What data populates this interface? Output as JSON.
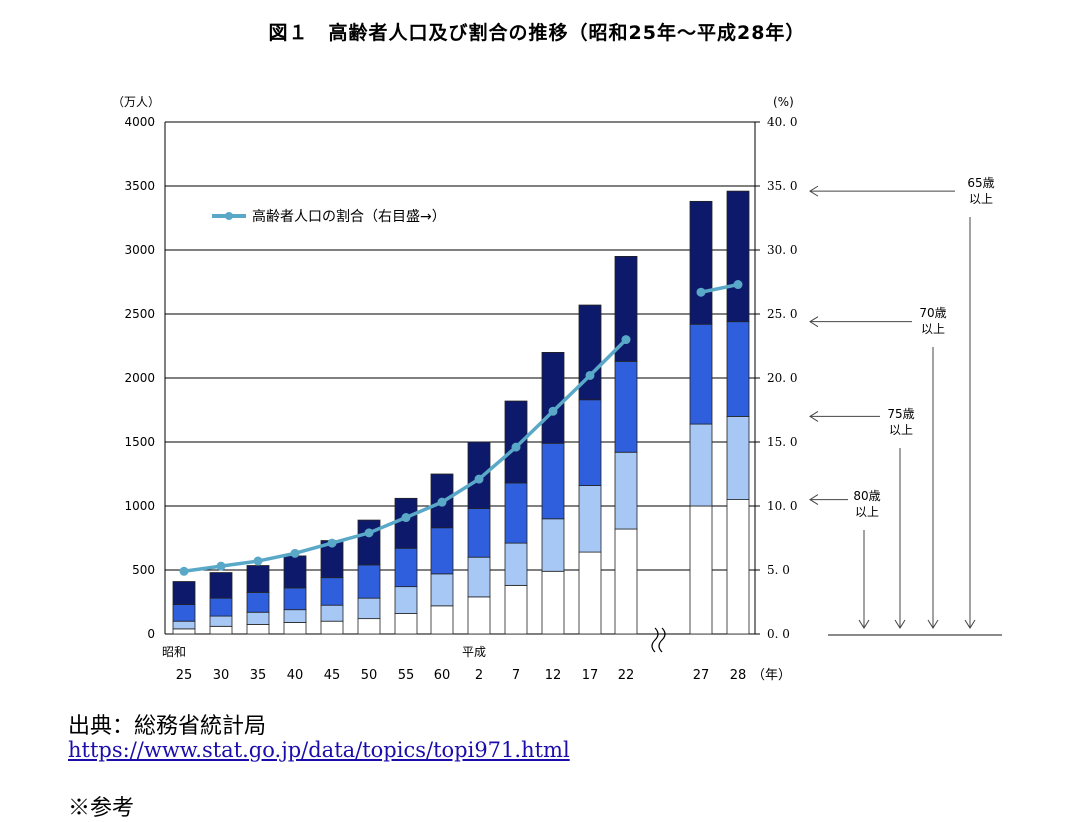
{
  "title": "図１　高齢者人口及び割合の推移（昭和25年～平成28年）",
  "colors": {
    "age65_69": "#0d1a6b",
    "age70_74": "#2f5fdc",
    "age75_79": "#a7c7f5",
    "age80plus": "#ffffff",
    "line": "#5aa8c8",
    "bar_stroke": "#222222",
    "arrow": "#444444"
  },
  "chart_data": {
    "type": "bar",
    "stacked": true,
    "y_unit_label": "（万人）",
    "y2_unit_label": "(%)",
    "ylim": [
      0,
      4000
    ],
    "y2lim": [
      0,
      40
    ],
    "y_ticks": [
      "4000",
      "3500",
      "3000",
      "2500",
      "2000",
      "1500",
      "1000",
      "500",
      "0"
    ],
    "y2_ticks": [
      "40. 0",
      "35. 0",
      "30. 0",
      "25. 0",
      "20. 0",
      "15. 0",
      "10. 0",
      "5. 0",
      "0. 0"
    ],
    "era_labels": [
      "昭和",
      "平成"
    ],
    "year_unit_label": "（年）",
    "categories": [
      "25",
      "30",
      "35",
      "40",
      "45",
      "50",
      "55",
      "60",
      "2",
      "7",
      "12",
      "17",
      "22",
      "27",
      "28"
    ],
    "grid": true,
    "axis_break_after": "22",
    "series": [
      {
        "key": "age80plus",
        "values": [
          40,
          60,
          75,
          90,
          100,
          120,
          160,
          220,
          290,
          380,
          490,
          640,
          820,
          1000,
          1050
        ]
      },
      {
        "key": "age75_79",
        "values": [
          60,
          80,
          95,
          100,
          125,
          160,
          210,
          250,
          310,
          330,
          410,
          520,
          600,
          640,
          650
        ]
      },
      {
        "key": "age70_74",
        "values": [
          130,
          140,
          155,
          170,
          215,
          260,
          300,
          360,
          380,
          470,
          590,
          670,
          710,
          780,
          740
        ]
      },
      {
        "key": "age65_69",
        "values": [
          180,
          200,
          210,
          250,
          290,
          350,
          390,
          420,
          520,
          640,
          710,
          740,
          820,
          960,
          1020
        ]
      }
    ],
    "line_series": {
      "name": "高齢者人口の割合（右目盛→）",
      "values": [
        4.9,
        5.3,
        5.7,
        6.3,
        7.1,
        7.9,
        9.1,
        10.3,
        12.1,
        14.6,
        17.4,
        20.2,
        23.0,
        26.7,
        27.3
      ]
    },
    "bracket_labels": [
      {
        "line1": "65歳",
        "line2": "以上"
      },
      {
        "line1": "70歳",
        "line2": "以上"
      },
      {
        "line1": "75歳",
        "line2": "以上"
      },
      {
        "line1": "80歳",
        "line2": "以上"
      }
    ],
    "bracket_levels": [
      3460,
      2440,
      1700,
      1050
    ]
  },
  "source": {
    "label": "出典：総務省統計局",
    "url": "https://www.stat.go.jp/data/topics/topi971.html"
  },
  "reference_label": "※参考"
}
